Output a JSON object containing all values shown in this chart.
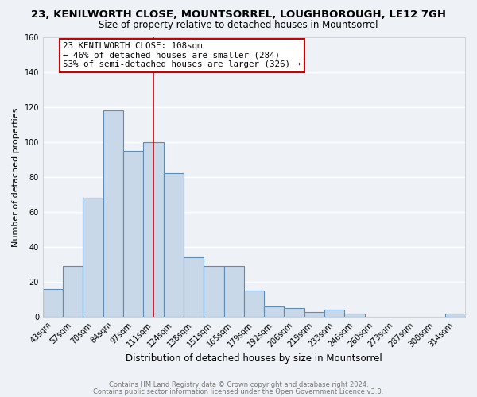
{
  "title": "23, KENILWORTH CLOSE, MOUNTSORREL, LOUGHBOROUGH, LE12 7GH",
  "subtitle": "Size of property relative to detached houses in Mountsorrel",
  "xlabel": "Distribution of detached houses by size in Mountsorrel",
  "ylabel": "Number of detached properties",
  "bar_color": "#c8d8e8",
  "bar_edge_color": "#5b8db8",
  "bin_labels": [
    "43sqm",
    "57sqm",
    "70sqm",
    "84sqm",
    "97sqm",
    "111sqm",
    "124sqm",
    "138sqm",
    "151sqm",
    "165sqm",
    "179sqm",
    "192sqm",
    "206sqm",
    "219sqm",
    "233sqm",
    "246sqm",
    "260sqm",
    "273sqm",
    "287sqm",
    "300sqm",
    "314sqm"
  ],
  "bar_heights": [
    16,
    29,
    68,
    118,
    95,
    100,
    82,
    34,
    29,
    29,
    15,
    6,
    5,
    3,
    4,
    2,
    0,
    0,
    0,
    0,
    2
  ],
  "ylim": [
    0,
    160
  ],
  "yticks": [
    0,
    20,
    40,
    60,
    80,
    100,
    120,
    140,
    160
  ],
  "vline_x_index": 5,
  "vline_color": "#cc0000",
  "annotation_title": "23 KENILWORTH CLOSE: 108sqm",
  "annotation_line1": "← 46% of detached houses are smaller (284)",
  "annotation_line2": "53% of semi-detached houses are larger (326) →",
  "annotation_box_facecolor": "#ffffff",
  "annotation_box_edgecolor": "#cc0000",
  "footer1": "Contains HM Land Registry data © Crown copyright and database right 2024.",
  "footer2": "Contains public sector information licensed under the Open Government Licence v3.0.",
  "bg_color": "#eef2f7",
  "plot_bg_color": "#eef2f7",
  "grid_color": "#ffffff",
  "title_fontsize": 9.5,
  "subtitle_fontsize": 8.5,
  "ylabel_fontsize": 8,
  "xlabel_fontsize": 8.5,
  "tick_fontsize": 7,
  "footer_fontsize": 6,
  "ann_fontsize": 7.8
}
